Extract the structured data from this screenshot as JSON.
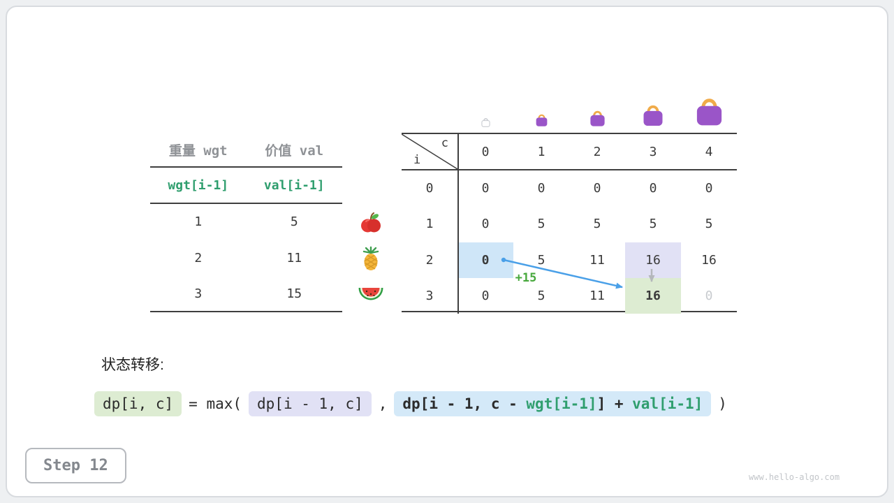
{
  "meta": {
    "step_label": "Step 12",
    "watermark": "www.hello-algo.com"
  },
  "items_table": {
    "headers": [
      "重量 wgt",
      "价值 val"
    ],
    "formula_row": [
      "wgt[i-1]",
      "val[i-1]"
    ],
    "rows": [
      {
        "wgt": "1",
        "val": "5",
        "icon": "apple"
      },
      {
        "wgt": "2",
        "val": "11",
        "icon": "pineapple"
      },
      {
        "wgt": "3",
        "val": "15",
        "icon": "watermelon"
      }
    ]
  },
  "dp_table": {
    "corner": {
      "row_var": "i",
      "col_var": "c"
    },
    "col_headers": [
      "0",
      "1",
      "2",
      "3",
      "4"
    ],
    "row_headers": [
      "0",
      "1",
      "2",
      "3"
    ],
    "cells": [
      [
        "0",
        "0",
        "0",
        "0",
        "0"
      ],
      [
        "0",
        "5",
        "5",
        "5",
        "5"
      ],
      [
        "0",
        "5",
        "11",
        "16",
        "16"
      ],
      [
        "0",
        "5",
        "11",
        "16",
        "0"
      ]
    ],
    "highlights": [
      {
        "row": 2,
        "col": 0,
        "style": "blue",
        "bold": true
      },
      {
        "row": 2,
        "col": 3,
        "style": "lavender",
        "bold": false
      },
      {
        "row": 3,
        "col": 3,
        "style": "green",
        "bold": true
      },
      {
        "row": 3,
        "col": 4,
        "style": "muted",
        "bold": false
      }
    ],
    "transfer_label": "+15",
    "capacity_icons": [
      {
        "icon": "empty-bag",
        "size": 15,
        "variant": "outline"
      },
      {
        "icon": "bag",
        "size": 21,
        "variant": "filled"
      },
      {
        "icon": "bag",
        "size": 27,
        "variant": "filled"
      },
      {
        "icon": "bag",
        "size": 36,
        "variant": "filled"
      },
      {
        "icon": "bag",
        "size": 47,
        "variant": "filled"
      }
    ]
  },
  "formula": {
    "heading": "状态转移:",
    "lhs": "dp[i, c]",
    "eq_max": "= max(",
    "arg1": "dp[i - 1, c]",
    "comma": ",",
    "arg2_parts": [
      {
        "text": "dp[i - 1, c - ",
        "green": false
      },
      {
        "text": "wgt[i-1]",
        "green": true
      },
      {
        "text": "] + ",
        "green": false
      },
      {
        "text": "val[i-1]",
        "green": true
      }
    ],
    "close_paren": ")"
  },
  "colors": {
    "teal_green": "#2f9e6e",
    "plus_green": "#47a83c",
    "arrow_blue": "#4aa0e8",
    "arrow_gray": "#b4b7bb",
    "hl_blue": "#cfe6f8",
    "hl_lavender": "#e1e1f5",
    "hl_green": "#ddecd2",
    "formula_blue": "#d4e9f8",
    "bag_purple": "#9a55c8",
    "bag_handle": "#f0ab4a",
    "muted_text": "#c8cbcf",
    "line_dark": "#3f3f3f"
  }
}
